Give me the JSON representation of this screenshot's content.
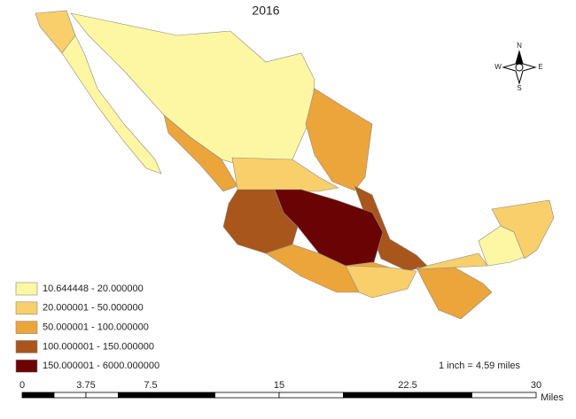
{
  "title": "2016",
  "legend": [
    {
      "label": "10.644448 - 20.000000",
      "color": "#fdf6a3"
    },
    {
      "label": "20.000001 - 50.000000",
      "color": "#f8cf6b"
    },
    {
      "label": "50.000001 - 100.000000",
      "color": "#eca53a"
    },
    {
      "label": "100.000001 - 150.000000",
      "color": "#a8561c"
    },
    {
      "label": "150.000001 - 6000.000000",
      "color": "#6a0404"
    }
  ],
  "scale_note": "1 inch = 4.59 miles",
  "scale_bar": {
    "labels": [
      "0",
      "3.75",
      "7.5",
      "15",
      "22.5",
      "30"
    ],
    "unit": "Miles"
  },
  "compass": {
    "n": "N",
    "e": "E",
    "s": "S",
    "w": "W"
  }
}
